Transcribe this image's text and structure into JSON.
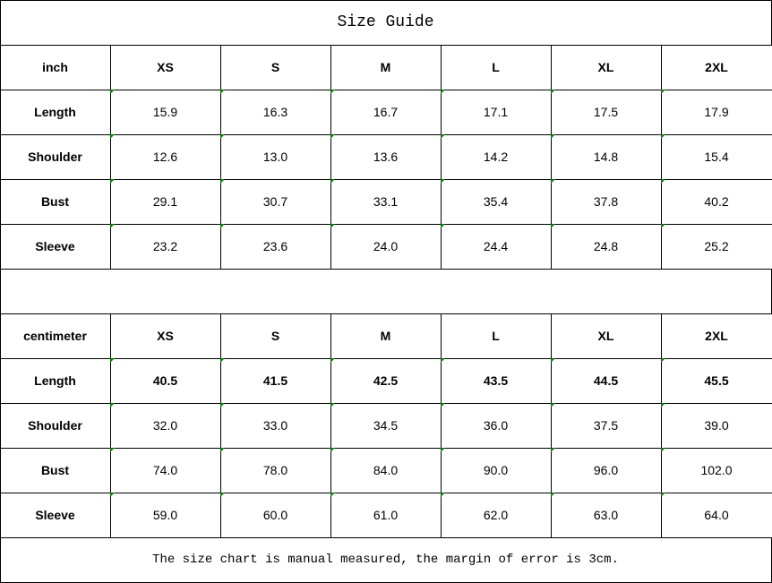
{
  "title": "Size Guide",
  "colors": {
    "border": "#000000",
    "marker": "#0a7a0a"
  },
  "tables": [
    {
      "unit": "inch",
      "sizes": [
        "XS",
        "S",
        "M",
        "L",
        "XL",
        "2XL"
      ],
      "rows": [
        {
          "label": "Length",
          "values": [
            "15.9",
            "16.3",
            "16.7",
            "17.1",
            "17.5",
            "17.9"
          ],
          "bold": false
        },
        {
          "label": "Shoulder",
          "values": [
            "12.6",
            "13.0",
            "13.6",
            "14.2",
            "14.8",
            "15.4"
          ],
          "bold": false
        },
        {
          "label": "Bust",
          "values": [
            "29.1",
            "30.7",
            "33.1",
            "35.4",
            "37.8",
            "40.2"
          ],
          "bold": false
        },
        {
          "label": "Sleeve",
          "values": [
            "23.2",
            "23.6",
            "24.0",
            "24.4",
            "24.8",
            "25.2"
          ],
          "bold": false
        }
      ]
    },
    {
      "unit": "centimeter",
      "sizes": [
        "XS",
        "S",
        "M",
        "L",
        "XL",
        "2XL"
      ],
      "rows": [
        {
          "label": "Length",
          "values": [
            "40.5",
            "41.5",
            "42.5",
            "43.5",
            "44.5",
            "45.5"
          ],
          "bold": true
        },
        {
          "label": "Shoulder",
          "values": [
            "32.0",
            "33.0",
            "34.5",
            "36.0",
            "37.5",
            "39.0"
          ],
          "bold": false
        },
        {
          "label": "Bust",
          "values": [
            "74.0",
            "78.0",
            "84.0",
            "90.0",
            "96.0",
            "102.0"
          ],
          "bold": false
        },
        {
          "label": "Sleeve",
          "values": [
            "59.0",
            "60.0",
            "61.0",
            "62.0",
            "63.0",
            "64.0"
          ],
          "bold": false
        }
      ]
    }
  ],
  "footer": "The size chart is manual measured, the margin of error is 3cm."
}
